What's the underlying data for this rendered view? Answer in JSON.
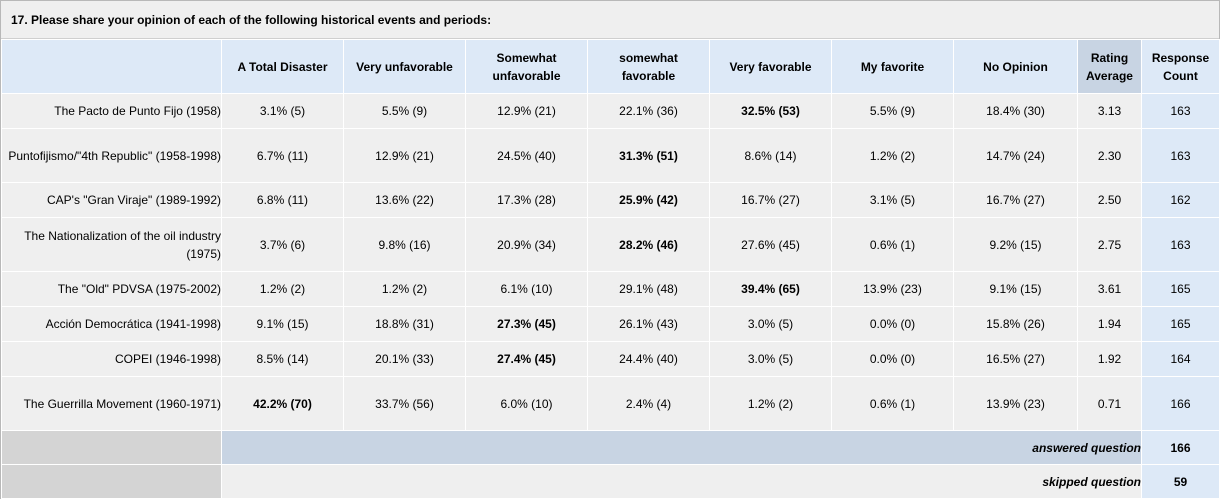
{
  "question": {
    "title": "17. Please share your opinion of each of the following historical events and periods:"
  },
  "columns": [
    "A Total Disaster",
    "Very unfavorable",
    "Somewhat unfavorable",
    "somewhat favorable",
    "Very favorable",
    "My favorite",
    "No Opinion",
    "Rating Average",
    "Response Count"
  ],
  "rows": [
    {
      "label": "The Pacto de Punto Fijo (1958)",
      "cells": [
        "3.1% (5)",
        "5.5% (9)",
        "12.9% (21)",
        "22.1% (36)",
        "32.5% (53)",
        "5.5% (9)",
        "18.4% (30)"
      ],
      "highlight_index": 4,
      "rating": "3.13",
      "count": "163"
    },
    {
      "label": "Puntofijismo/\"4th Republic\" (1958-1998)",
      "cells": [
        "6.7% (11)",
        "12.9% (21)",
        "24.5% (40)",
        "31.3% (51)",
        "8.6% (14)",
        "1.2% (2)",
        "14.7% (24)"
      ],
      "highlight_index": 3,
      "rating": "2.30",
      "count": "163"
    },
    {
      "label": "CAP's \"Gran Viraje\" (1989-1992)",
      "cells": [
        "6.8% (11)",
        "13.6% (22)",
        "17.3% (28)",
        "25.9% (42)",
        "16.7% (27)",
        "3.1% (5)",
        "16.7% (27)"
      ],
      "highlight_index": 3,
      "rating": "2.50",
      "count": "162"
    },
    {
      "label": "The Nationalization of the oil industry (1975)",
      "cells": [
        "3.7% (6)",
        "9.8% (16)",
        "20.9% (34)",
        "28.2% (46)",
        "27.6% (45)",
        "0.6% (1)",
        "9.2% (15)"
      ],
      "highlight_index": 3,
      "rating": "2.75",
      "count": "163"
    },
    {
      "label": "The \"Old\" PDVSA (1975-2002)",
      "cells": [
        "1.2% (2)",
        "1.2% (2)",
        "6.1% (10)",
        "29.1% (48)",
        "39.4% (65)",
        "13.9% (23)",
        "9.1% (15)"
      ],
      "highlight_index": 4,
      "rating": "3.61",
      "count": "165"
    },
    {
      "label": "Acción Democrática (1941-1998)",
      "cells": [
        "9.1% (15)",
        "18.8% (31)",
        "27.3% (45)",
        "26.1% (43)",
        "3.0% (5)",
        "0.0% (0)",
        "15.8% (26)"
      ],
      "highlight_index": 2,
      "rating": "1.94",
      "count": "165"
    },
    {
      "label": "COPEI (1946-1998)",
      "cells": [
        "8.5% (14)",
        "20.1% (33)",
        "27.4% (45)",
        "24.4% (40)",
        "3.0% (5)",
        "0.0% (0)",
        "16.5% (27)"
      ],
      "highlight_index": 2,
      "rating": "1.92",
      "count": "164"
    },
    {
      "label": "The Guerrilla Movement (1960-1971)",
      "cells": [
        "42.2% (70)",
        "33.7% (56)",
        "6.0% (10)",
        "2.4% (4)",
        "1.2% (2)",
        "0.6% (1)",
        "13.9% (23)"
      ],
      "highlight_index": 0,
      "rating": "0.71",
      "count": "166"
    }
  ],
  "summary": {
    "answered_label": "answered question",
    "answered_count": "166",
    "skipped_label": "skipped question",
    "skipped_count": "59"
  }
}
